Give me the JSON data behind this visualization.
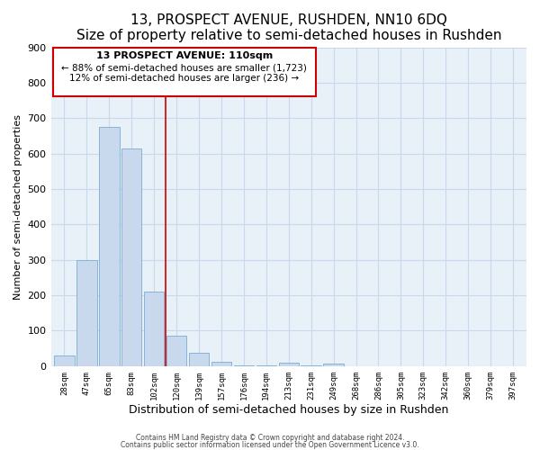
{
  "title": "13, PROSPECT AVENUE, RUSHDEN, NN10 6DQ",
  "subtitle": "Size of property relative to semi-detached houses in Rushden",
  "bar_labels": [
    "28sqm",
    "47sqm",
    "65sqm",
    "83sqm",
    "102sqm",
    "120sqm",
    "139sqm",
    "157sqm",
    "176sqm",
    "194sqm",
    "213sqm",
    "231sqm",
    "249sqm",
    "268sqm",
    "286sqm",
    "305sqm",
    "323sqm",
    "342sqm",
    "360sqm",
    "379sqm",
    "397sqm"
  ],
  "bar_values": [
    30,
    300,
    675,
    615,
    210,
    85,
    38,
    12,
    3,
    3,
    10,
    3,
    8,
    0,
    0,
    0,
    0,
    0,
    0,
    0,
    0
  ],
  "bar_color": "#c8d8ed",
  "bar_edge_color": "#7badd4",
  "property_line_x": 4.5,
  "ylabel": "Number of semi-detached properties",
  "xlabel": "Distribution of semi-detached houses by size in Rushden",
  "ylim": [
    0,
    900
  ],
  "yticks": [
    0,
    100,
    200,
    300,
    400,
    500,
    600,
    700,
    800,
    900
  ],
  "annotation_title": "13 PROSPECT AVENUE: 110sqm",
  "annotation_smaller": "← 88% of semi-detached houses are smaller (1,723)",
  "annotation_larger": "12% of semi-detached houses are larger (236) →",
  "footer1": "Contains HM Land Registry data © Crown copyright and database right 2024.",
  "footer2": "Contains public sector information licensed under the Open Government Licence v3.0.",
  "red_line_color": "#cc0000",
  "box_edge_color": "#cc0000",
  "grid_color": "#c8d8ed",
  "background_color": "#e8f0f8",
  "title_fontsize": 11,
  "subtitle_fontsize": 9
}
